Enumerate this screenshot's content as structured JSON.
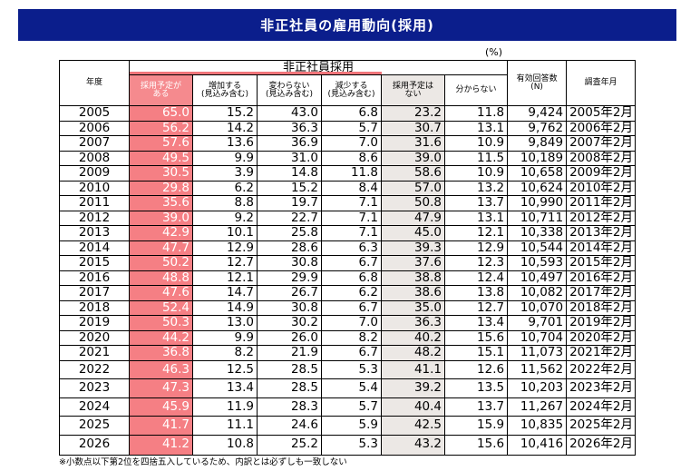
{
  "title": "非正社員の雇用動向(採用)",
  "unit": "(%)",
  "table": {
    "group_header": "非正社員採用",
    "header": [
      "年度",
      "採用予定が\nある",
      "増加する\n(見込み含む)",
      "変わらない\n(見込み含む)",
      "減少する\n(見込み含む)",
      "採用予定は\nない",
      "分からない",
      "有効回答数\n(N)",
      "調査年月"
    ],
    "rows": [
      [
        "2005",
        "65.0",
        "15.2",
        "43.0",
        "6.8",
        "23.2",
        "11.8",
        "9,424",
        "2005年2月"
      ],
      [
        "2006",
        "56.2",
        "14.2",
        "36.3",
        "5.7",
        "30.7",
        "13.1",
        "9,762",
        "2006年2月"
      ],
      [
        "2007",
        "57.6",
        "13.6",
        "36.9",
        "7.0",
        "31.6",
        "10.9",
        "9,849",
        "2007年2月"
      ],
      [
        "2008",
        "49.5",
        "9.9",
        "31.0",
        "8.6",
        "39.0",
        "11.5",
        "10,189",
        "2008年2月"
      ],
      [
        "2009",
        "30.5",
        "3.9",
        "14.8",
        "11.8",
        "58.6",
        "10.9",
        "10,658",
        "2009年2月"
      ],
      [
        "2010",
        "29.8",
        "6.2",
        "15.2",
        "8.4",
        "57.0",
        "13.2",
        "10,624",
        "2010年2月"
      ],
      [
        "2011",
        "35.6",
        "8.8",
        "19.7",
        "7.1",
        "50.8",
        "13.7",
        "10,990",
        "2011年2月"
      ],
      [
        "2012",
        "39.0",
        "9.2",
        "22.7",
        "7.1",
        "47.9",
        "13.1",
        "10,711",
        "2012年2月"
      ],
      [
        "2013",
        "42.9",
        "10.1",
        "25.8",
        "7.1",
        "45.0",
        "12.1",
        "10,338",
        "2013年2月"
      ],
      [
        "2014",
        "47.7",
        "12.9",
        "28.6",
        "6.3",
        "39.3",
        "12.9",
        "10,544",
        "2014年2月"
      ],
      [
        "2015",
        "50.2",
        "12.7",
        "30.8",
        "6.7",
        "37.6",
        "12.3",
        "10,593",
        "2015年2月"
      ],
      [
        "2016",
        "48.8",
        "12.1",
        "29.9",
        "6.8",
        "38.8",
        "12.4",
        "10,497",
        "2016年2月"
      ],
      [
        "2017",
        "47.6",
        "14.7",
        "26.7",
        "6.2",
        "38.6",
        "13.8",
        "10,082",
        "2017年2月"
      ],
      [
        "2018",
        "52.4",
        "14.9",
        "30.8",
        "6.7",
        "35.0",
        "12.7",
        "10,070",
        "2018年2月"
      ],
      [
        "2019",
        "50.3",
        "13.0",
        "30.2",
        "7.0",
        "36.3",
        "13.4",
        "9,701",
        "2019年2月"
      ],
      [
        "2020",
        "44.2",
        "9.9",
        "26.0",
        "8.2",
        "40.2",
        "15.6",
        "10,704",
        "2020年2月"
      ],
      [
        "2021",
        "36.8",
        "8.2",
        "21.9",
        "6.7",
        "48.2",
        "15.1",
        "11,073",
        "2021年2月"
      ],
      [
        "2022",
        "46.3",
        "12.5",
        "28.5",
        "5.3",
        "41.1",
        "12.6",
        "11,562",
        "2022年2月"
      ],
      [
        "2023",
        "47.3",
        "13.4",
        "28.5",
        "5.4",
        "39.2",
        "13.5",
        "10,203",
        "2023年2月"
      ],
      [
        "2024",
        "45.9",
        "11.9",
        "28.3",
        "5.7",
        "40.4",
        "13.7",
        "11,267",
        "2024年2月"
      ],
      [
        "2025",
        "41.7",
        "11.1",
        "24.6",
        "5.9",
        "42.5",
        "15.9",
        "10,835",
        "2025年2月"
      ],
      [
        "2026",
        "41.2",
        "10.8",
        "25.2",
        "5.3",
        "43.2",
        "15.6",
        "10,416",
        "2026年2月"
      ]
    ]
  },
  "footnote": "※小数点以下第2位を四捨五入しているため、内訳とは必ずしも一致しない"
}
